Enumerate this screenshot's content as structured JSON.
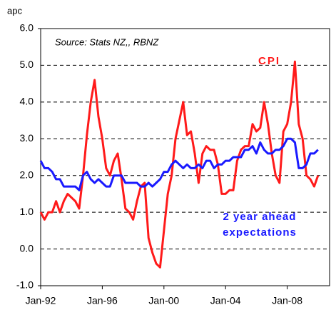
{
  "chart_data": {
    "type": "line",
    "y_label": "apc",
    "source_note": "Source: Stats NZ,, RBNZ",
    "annotations": [
      "CPI",
      "2 year ahead",
      "expectations"
    ],
    "x": [
      1992,
      1992.25,
      1992.5,
      1992.75,
      1993,
      1993.25,
      1993.5,
      1993.75,
      1994,
      1994.25,
      1994.5,
      1994.75,
      1995,
      1995.25,
      1995.5,
      1995.75,
      1996,
      1996.25,
      1996.5,
      1996.75,
      1997,
      1997.25,
      1997.5,
      1997.75,
      1998,
      1998.25,
      1998.5,
      1998.75,
      1999,
      1999.25,
      1999.5,
      1999.75,
      2000,
      2000.25,
      2000.5,
      2000.75,
      2001,
      2001.25,
      2001.5,
      2001.75,
      2002,
      2002.25,
      2002.5,
      2002.75,
      2003,
      2003.25,
      2003.5,
      2003.75,
      2004,
      2004.25,
      2004.5,
      2004.75,
      2005,
      2005.25,
      2005.5,
      2005.75,
      2006,
      2006.25,
      2006.5,
      2006.75,
      2007,
      2007.25,
      2007.5,
      2007.75,
      2008,
      2008.25,
      2008.5,
      2008.75,
      2009,
      2009.25,
      2009.5,
      2009.75,
      2010
    ],
    "series": [
      {
        "name": "CPI",
        "color": "#ff1a1a",
        "values": [
          1.0,
          0.8,
          1.0,
          1.0,
          1.3,
          1.0,
          1.3,
          1.5,
          1.4,
          1.3,
          1.1,
          2.0,
          3.1,
          4.0,
          4.6,
          3.6,
          3.0,
          2.2,
          2.0,
          2.4,
          2.6,
          1.9,
          1.1,
          1.0,
          0.8,
          1.3,
          1.7,
          1.8,
          0.3,
          -0.1,
          -0.4,
          -0.5,
          0.5,
          1.5,
          2.0,
          3.0,
          3.5,
          4.0,
          3.1,
          3.2,
          2.6,
          1.8,
          2.6,
          2.8,
          2.7,
          2.7,
          2.3,
          1.5,
          1.5,
          1.6,
          1.6,
          2.4,
          2.7,
          2.8,
          2.8,
          3.4,
          3.2,
          3.3,
          4.0,
          3.4,
          2.6,
          2.0,
          1.8,
          3.2,
          3.4,
          4.0,
          5.1,
          3.4,
          3.0,
          2.0,
          1.9,
          1.7,
          2.0
        ]
      },
      {
        "name": "2 year ahead expectations",
        "color": "#1a1aff",
        "values": [
          2.4,
          2.2,
          2.2,
          2.1,
          1.9,
          1.9,
          1.7,
          1.7,
          1.7,
          1.7,
          1.6,
          2.0,
          2.1,
          1.9,
          1.8,
          1.9,
          1.8,
          1.7,
          1.7,
          2.0,
          2.0,
          2.0,
          1.8,
          1.8,
          1.8,
          1.8,
          1.7,
          1.7,
          1.8,
          1.7,
          1.8,
          1.9,
          2.1,
          2.1,
          2.3,
          2.4,
          2.3,
          2.2,
          2.3,
          2.2,
          2.2,
          2.3,
          2.2,
          2.4,
          2.4,
          2.2,
          2.3,
          2.3,
          2.4,
          2.4,
          2.5,
          2.5,
          2.5,
          2.7,
          2.7,
          2.8,
          2.6,
          2.9,
          2.7,
          2.6,
          2.6,
          2.7,
          2.7,
          2.8,
          3.0,
          3.0,
          2.9,
          2.2,
          2.2,
          2.3,
          2.6,
          2.6,
          2.7
        ]
      }
    ],
    "xlim": [
      1992,
      2010.75
    ],
    "xticks": [
      {
        "value": 1992,
        "label": "Jan-92"
      },
      {
        "value": 1996,
        "label": "Jan-96"
      },
      {
        "value": 2000,
        "label": "Jan-00"
      },
      {
        "value": 2004,
        "label": "Jan-04"
      },
      {
        "value": 2008,
        "label": "Jan-08"
      }
    ],
    "ylim": [
      -1,
      6
    ],
    "yticks": [
      {
        "value": -1,
        "label": "-1.0"
      },
      {
        "value": 0,
        "label": "0.0"
      },
      {
        "value": 1,
        "label": "1.0"
      },
      {
        "value": 2,
        "label": "2.0"
      },
      {
        "value": 3,
        "label": "3.0"
      },
      {
        "value": 4,
        "label": "4.0"
      },
      {
        "value": 5,
        "label": "5.0"
      },
      {
        "value": 6,
        "label": "6.0"
      }
    ],
    "grid": true
  }
}
